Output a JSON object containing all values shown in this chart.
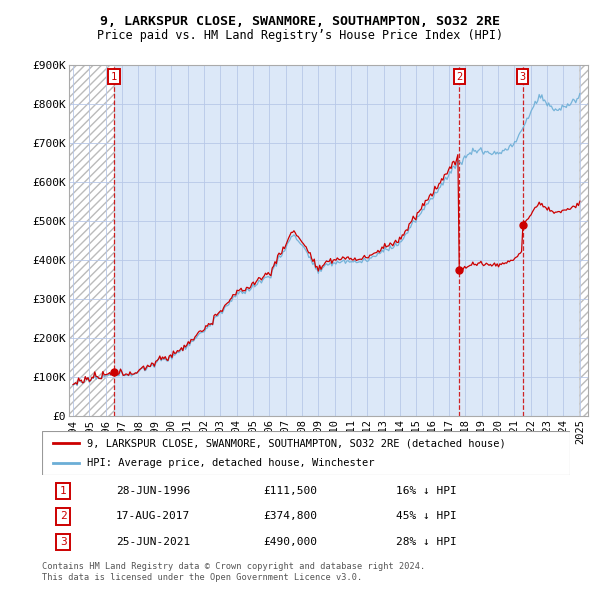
{
  "title": "9, LARKSPUR CLOSE, SWANMORE, SOUTHAMPTON, SO32 2RE",
  "subtitle": "Price paid vs. HM Land Registry’s House Price Index (HPI)",
  "sale_prices": [
    111500,
    374800,
    490000
  ],
  "sale_labels": [
    "1",
    "2",
    "3"
  ],
  "sale_label_pcts": [
    "16% ↓ HPI",
    "45% ↓ HPI",
    "28% ↓ HPI"
  ],
  "sale_label_dates_str": [
    "28-JUN-1996",
    "17-AUG-2017",
    "25-JUN-2021"
  ],
  "legend_red": "9, LARKSPUR CLOSE, SWANMORE, SOUTHAMPTON, SO32 2RE (detached house)",
  "legend_blue": "HPI: Average price, detached house, Winchester",
  "footer1": "Contains HM Land Registry data © Crown copyright and database right 2024.",
  "footer2": "This data is licensed under the Open Government Licence v3.0.",
  "red_color": "#cc0000",
  "blue_color": "#6baed6",
  "grid_color": "#b8c8e8",
  "background_color": "#ffffff",
  "plot_bg_color": "#dce8f8",
  "ylim": [
    0,
    900000
  ],
  "xlim_start": 1993.75,
  "xlim_end": 2025.5,
  "yticks": [
    0,
    100000,
    200000,
    300000,
    400000,
    500000,
    600000,
    700000,
    800000,
    900000
  ],
  "ytick_labels": [
    "£0",
    "£100K",
    "£200K",
    "£300K",
    "£400K",
    "£500K",
    "£600K",
    "£700K",
    "£800K",
    "£900K"
  ],
  "xticks": [
    1994,
    1995,
    1996,
    1997,
    1998,
    1999,
    2000,
    2001,
    2002,
    2003,
    2004,
    2005,
    2006,
    2007,
    2008,
    2009,
    2010,
    2011,
    2012,
    2013,
    2014,
    2015,
    2016,
    2017,
    2018,
    2019,
    2020,
    2021,
    2022,
    2023,
    2024,
    2025
  ],
  "sale_year_nums": [
    1996.5,
    2017.625,
    2021.5
  ],
  "hatch_end": 1996.5,
  "hatch_start_right": 2024.92
}
